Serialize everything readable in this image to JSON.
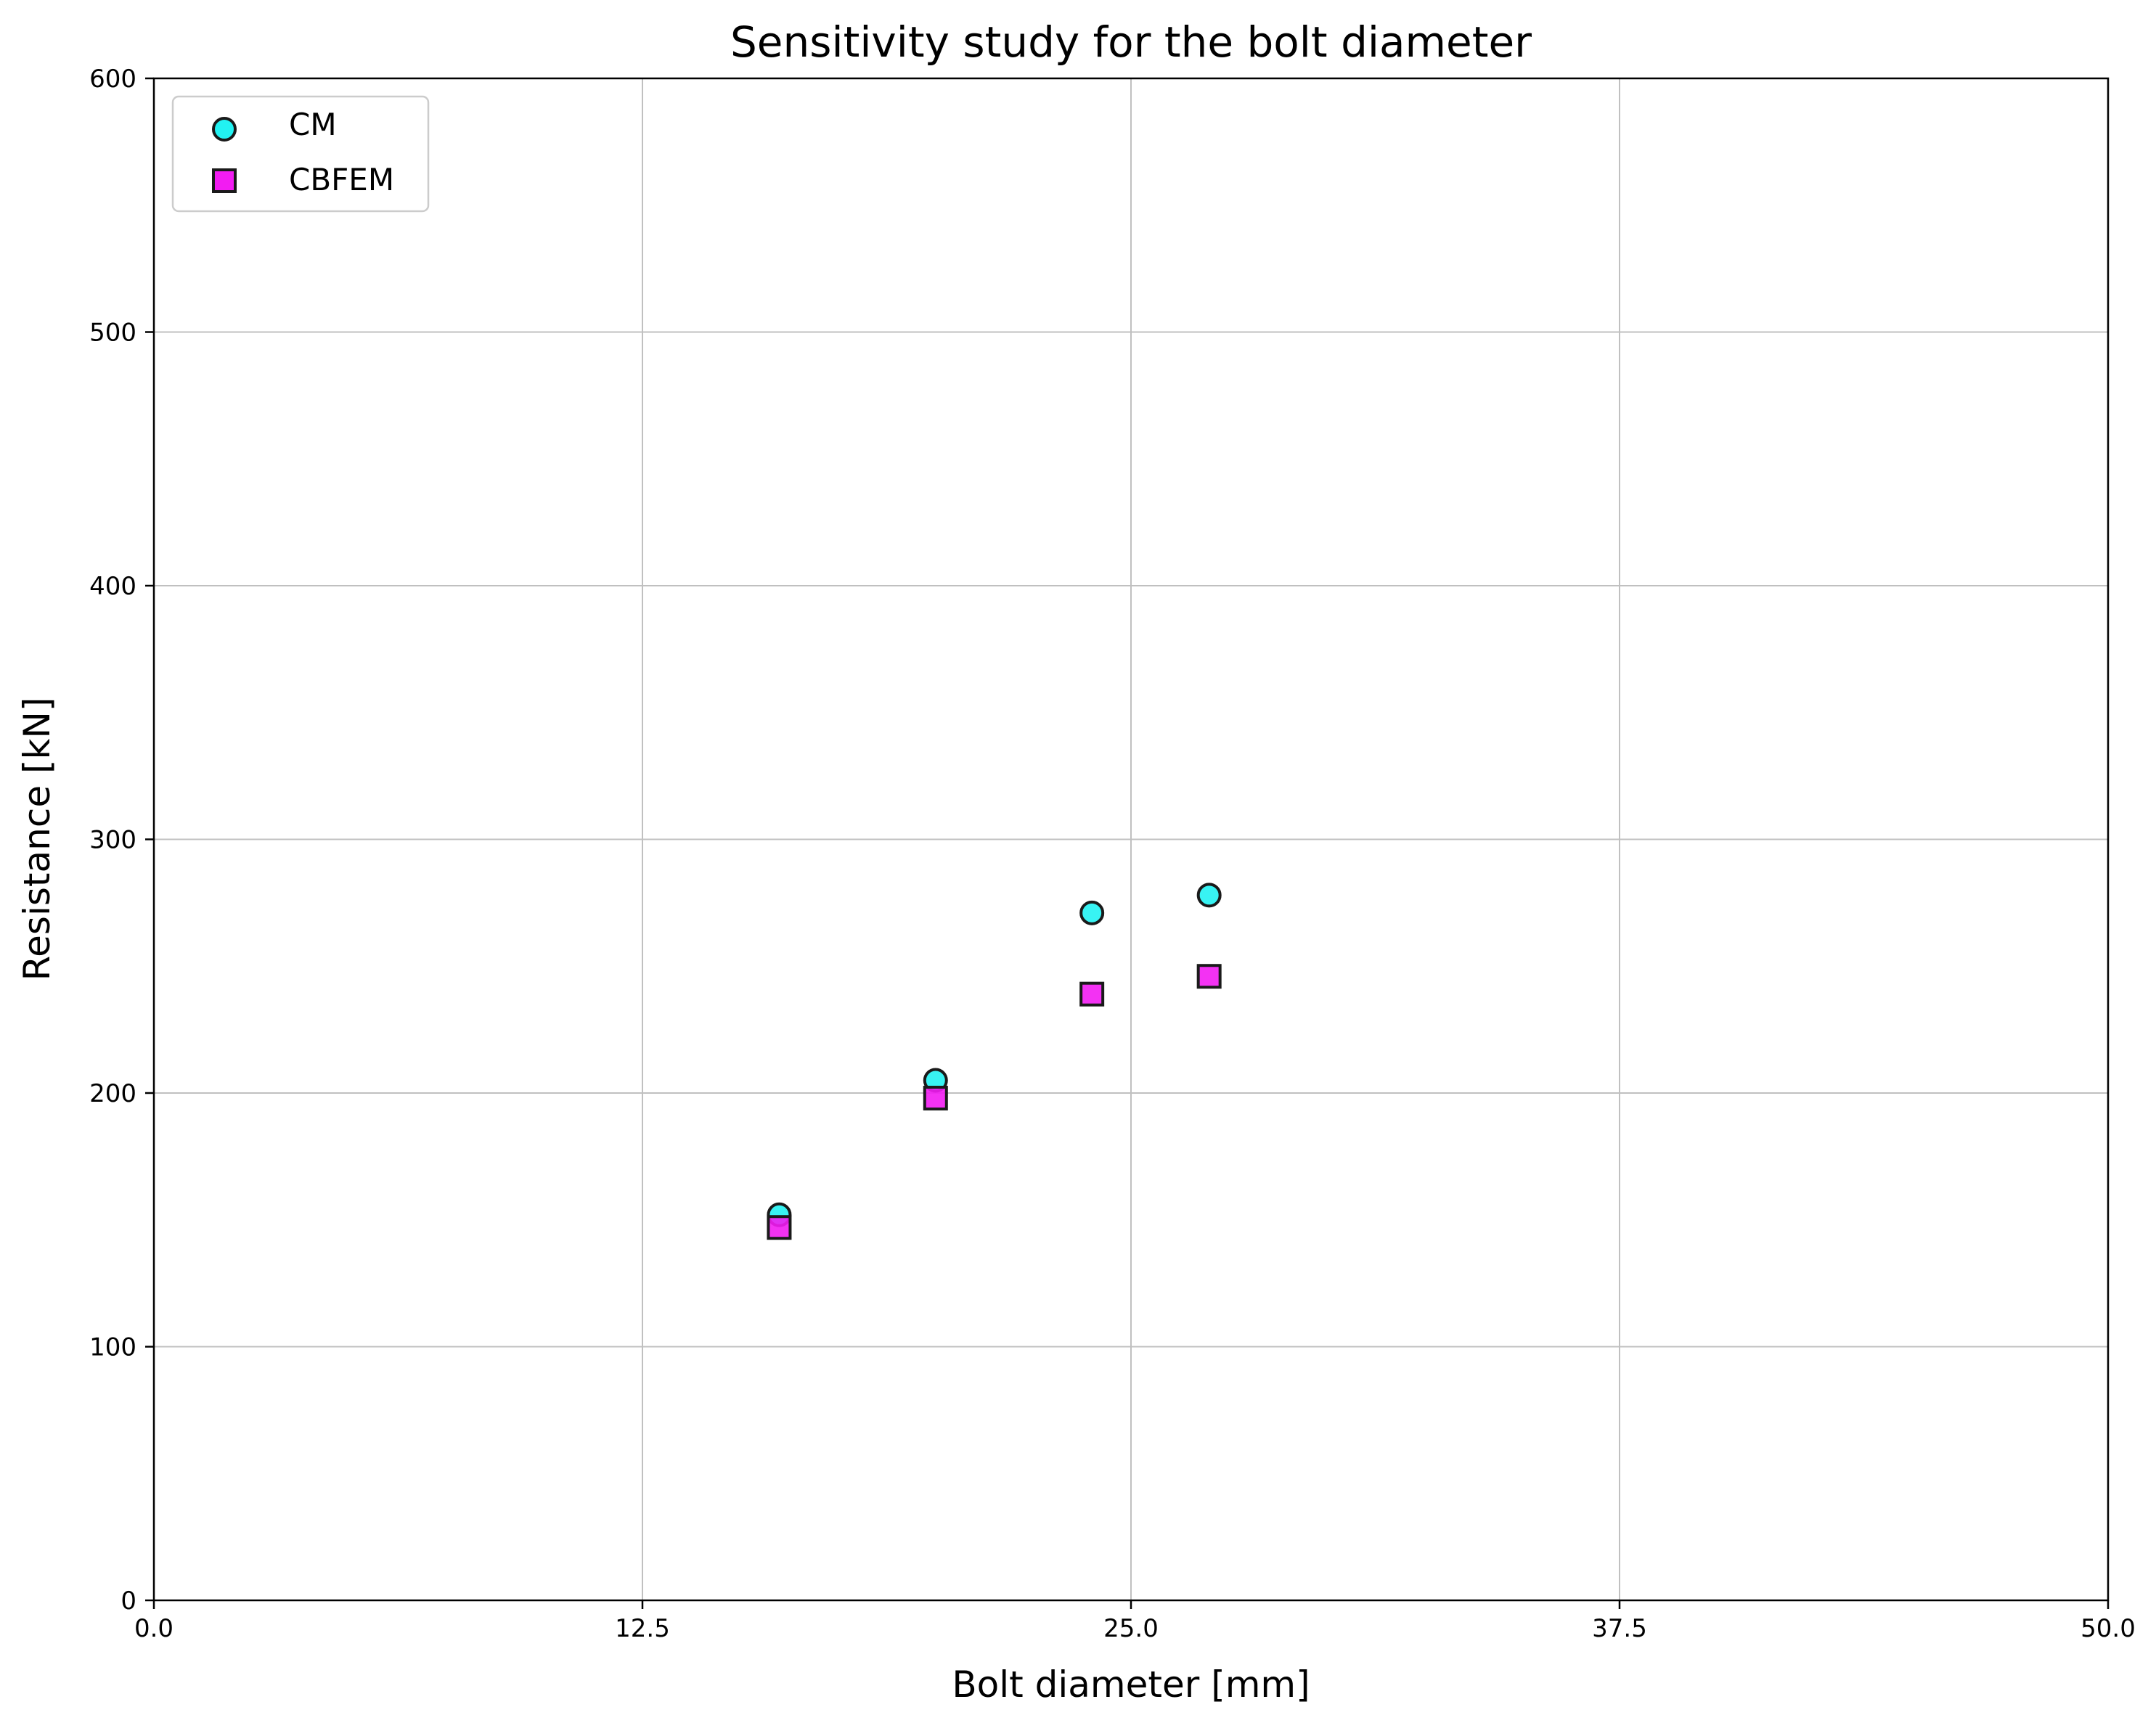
{
  "chart_data": {
    "type": "scatter",
    "title": "Sensitivity study for the bolt diameter",
    "xlabel": "Bolt diameter [mm]",
    "ylabel": "Resistance [kN]",
    "xlim": [
      0,
      50
    ],
    "ylim": [
      0,
      600
    ],
    "xticks": [
      0,
      12.5,
      25,
      37.5,
      50
    ],
    "xtick_labels": [
      "0.0",
      "12.5",
      "25.0",
      "37.5",
      "50.0"
    ],
    "yticks": [
      0,
      100,
      200,
      300,
      400,
      500,
      600
    ],
    "ytick_labels": [
      "0",
      "100",
      "200",
      "300",
      "400",
      "500",
      "600"
    ],
    "grid": true,
    "legend_position": "top-left",
    "series": [
      {
        "name": "CM",
        "marker": "circle",
        "color": "#22f2f2",
        "edge_color": "#1a1a1a",
        "x": [
          16,
          20,
          24,
          27
        ],
        "y": [
          152,
          205,
          271,
          278
        ]
      },
      {
        "name": "CBFEM",
        "marker": "square",
        "color": "#f21cf2",
        "edge_color": "#1a1a1a",
        "x": [
          16,
          20,
          24,
          27
        ],
        "y": [
          147,
          198,
          239,
          246
        ]
      }
    ]
  }
}
